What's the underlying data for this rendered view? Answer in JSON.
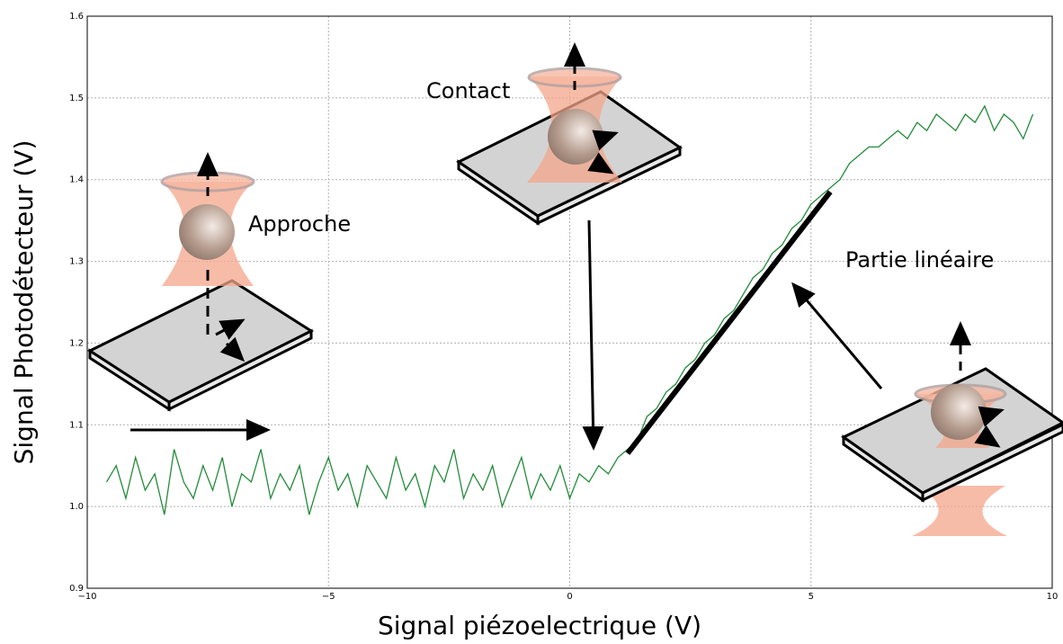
{
  "chart_data": {
    "type": "line",
    "xlabel": "Signal piézoelectrique (V)",
    "ylabel": "Signal Photodétecteur (V)",
    "xlim": [
      -10,
      10
    ],
    "ylim": [
      0.9,
      1.6
    ],
    "xticks": [
      {
        "value": -10,
        "label": "−10"
      },
      {
        "value": -5,
        "label": "−5"
      },
      0,
      5,
      10
    ],
    "yticks": [
      0.9,
      {
        "value": 1,
        "label": "1.0"
      },
      1.1,
      1.2,
      1.3,
      1.4,
      1.5,
      1.6
    ],
    "grid": true,
    "color": "#228b3a",
    "annotations": [
      "Approche",
      "Contact",
      "Partie linéaire"
    ],
    "x": [
      -9.6,
      -9.4,
      -9.2,
      -9.0,
      -8.8,
      -8.6,
      -8.4,
      -8.2,
      -8.0,
      -7.8,
      -7.6,
      -7.4,
      -7.2,
      -7.0,
      -6.8,
      -6.6,
      -6.4,
      -6.2,
      -6.0,
      -5.8,
      -5.6,
      -5.4,
      -5.2,
      -5.0,
      -4.8,
      -4.6,
      -4.4,
      -4.2,
      -4.0,
      -3.8,
      -3.6,
      -3.4,
      -3.2,
      -3.0,
      -2.8,
      -2.6,
      -2.4,
      -2.2,
      -2.0,
      -1.8,
      -1.6,
      -1.4,
      -1.2,
      -1.0,
      -0.8,
      -0.6,
      -0.4,
      -0.2,
      0.0,
      0.2,
      0.4,
      0.6,
      0.8,
      1.0,
      1.2,
      1.4,
      1.6,
      1.8,
      2.0,
      2.2,
      2.4,
      2.6,
      2.8,
      3.0,
      3.2,
      3.4,
      3.6,
      3.8,
      4.0,
      4.2,
      4.4,
      4.6,
      4.8,
      5.0,
      5.2,
      5.4,
      5.6,
      5.8,
      6.0,
      6.2,
      6.4,
      6.6,
      6.8,
      7.0,
      7.2,
      7.4,
      7.6,
      7.8,
      8.0,
      8.2,
      8.4,
      8.6,
      8.8,
      9.0,
      9.2,
      9.4,
      9.6
    ],
    "values": [
      1.03,
      1.05,
      1.01,
      1.06,
      1.02,
      1.04,
      0.99,
      1.07,
      1.03,
      1.01,
      1.05,
      1.02,
      1.06,
      1.0,
      1.04,
      1.03,
      1.07,
      1.01,
      1.04,
      1.02,
      1.05,
      0.99,
      1.03,
      1.06,
      1.02,
      1.04,
      1.0,
      1.05,
      1.03,
      1.01,
      1.06,
      1.02,
      1.04,
      1.0,
      1.05,
      1.03,
      1.07,
      1.01,
      1.04,
      1.02,
      1.05,
      1.0,
      1.03,
      1.06,
      1.01,
      1.04,
      1.02,
      1.05,
      1.01,
      1.04,
      1.03,
      1.05,
      1.04,
      1.06,
      1.07,
      1.08,
      1.11,
      1.12,
      1.14,
      1.15,
      1.17,
      1.18,
      1.2,
      1.21,
      1.23,
      1.24,
      1.26,
      1.28,
      1.29,
      1.31,
      1.32,
      1.34,
      1.35,
      1.37,
      1.38,
      1.39,
      1.4,
      1.42,
      1.43,
      1.44,
      1.44,
      1.45,
      1.46,
      1.45,
      1.47,
      1.46,
      1.48,
      1.47,
      1.46,
      1.48,
      1.47,
      1.49,
      1.46,
      1.48,
      1.47,
      1.45,
      1.48
    ],
    "fit_line": {
      "x": [
        1.2,
        5.4
      ],
      "values": [
        1.065,
        1.385
      ],
      "color": "#000000"
    }
  }
}
